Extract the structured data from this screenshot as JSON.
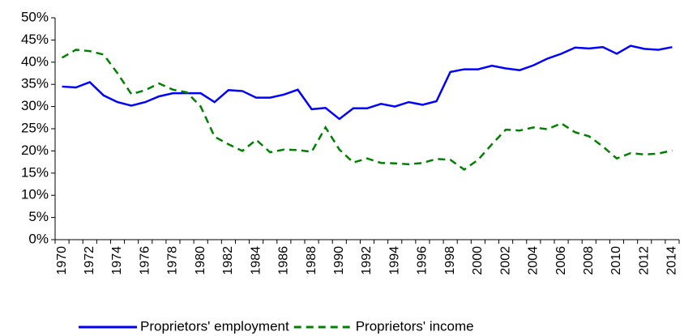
{
  "chart_data": {
    "type": "line",
    "categories": [
      "1970",
      null,
      "1972",
      null,
      "1974",
      null,
      "1976",
      null,
      "1978",
      null,
      "1980",
      null,
      "1982",
      null,
      "1984",
      null,
      "1986",
      null,
      "1988",
      null,
      "1990",
      null,
      "1992",
      null,
      "1994",
      null,
      "1996",
      null,
      "1998",
      null,
      "2000",
      null,
      "2002",
      null,
      "2004",
      null,
      "2006",
      null,
      "2008",
      null,
      "2010",
      null,
      "2012",
      null,
      "2014"
    ],
    "series": [
      {
        "name": "Proprietors' employment",
        "color": "#0000ff",
        "line_style": "solid",
        "values": [
          34.5,
          34.3,
          35.5,
          32.5,
          31,
          30.2,
          31,
          32.3,
          33,
          33,
          33,
          31,
          33.7,
          33.5,
          32,
          32,
          32.7,
          33.8,
          29.4,
          29.7,
          27.2,
          29.6,
          29.6,
          30.6,
          30,
          31,
          30.4,
          31.2,
          37.8,
          38.4,
          38.4,
          39.2,
          38.6,
          38.2,
          39.3,
          40.8,
          41.9,
          43.3,
          43.1,
          43.4,
          41.9,
          43.7,
          43,
          42.8,
          43.4
        ]
      },
      {
        "name": "Proprietors' income",
        "color": "#008000",
        "line_style": "dashed",
        "values": [
          41,
          42.8,
          42.5,
          41.7,
          37.5,
          32.8,
          33.7,
          35.2,
          33.8,
          33.2,
          30,
          23.2,
          21.5,
          20,
          22.5,
          19.7,
          20.3,
          20.2,
          19.8,
          25.3,
          20.3,
          17.4,
          18.3,
          17.3,
          17.2,
          17,
          17.3,
          18.2,
          18,
          15.8,
          18,
          21.5,
          24.8,
          24.6,
          25.3,
          24.9,
          26.2,
          24.2,
          23.3,
          21,
          18.3,
          19.5,
          19.2,
          19.4,
          20.1
        ]
      }
    ],
    "ylim": [
      0,
      50
    ],
    "yticks": [
      {
        "value": 0,
        "label": "0%"
      },
      {
        "value": 5,
        "label": "5%"
      },
      {
        "value": 10,
        "label": "10%"
      },
      {
        "value": 15,
        "label": "15%"
      },
      {
        "value": 20,
        "label": "20%"
      },
      {
        "value": 25,
        "label": "25%"
      },
      {
        "value": 30,
        "label": "30%"
      },
      {
        "value": 35,
        "label": "35%"
      },
      {
        "value": 40,
        "label": "40%"
      },
      {
        "value": 45,
        "label": "45%"
      },
      {
        "value": 50,
        "label": "50%"
      }
    ],
    "grid": false,
    "legend": "bottom"
  }
}
